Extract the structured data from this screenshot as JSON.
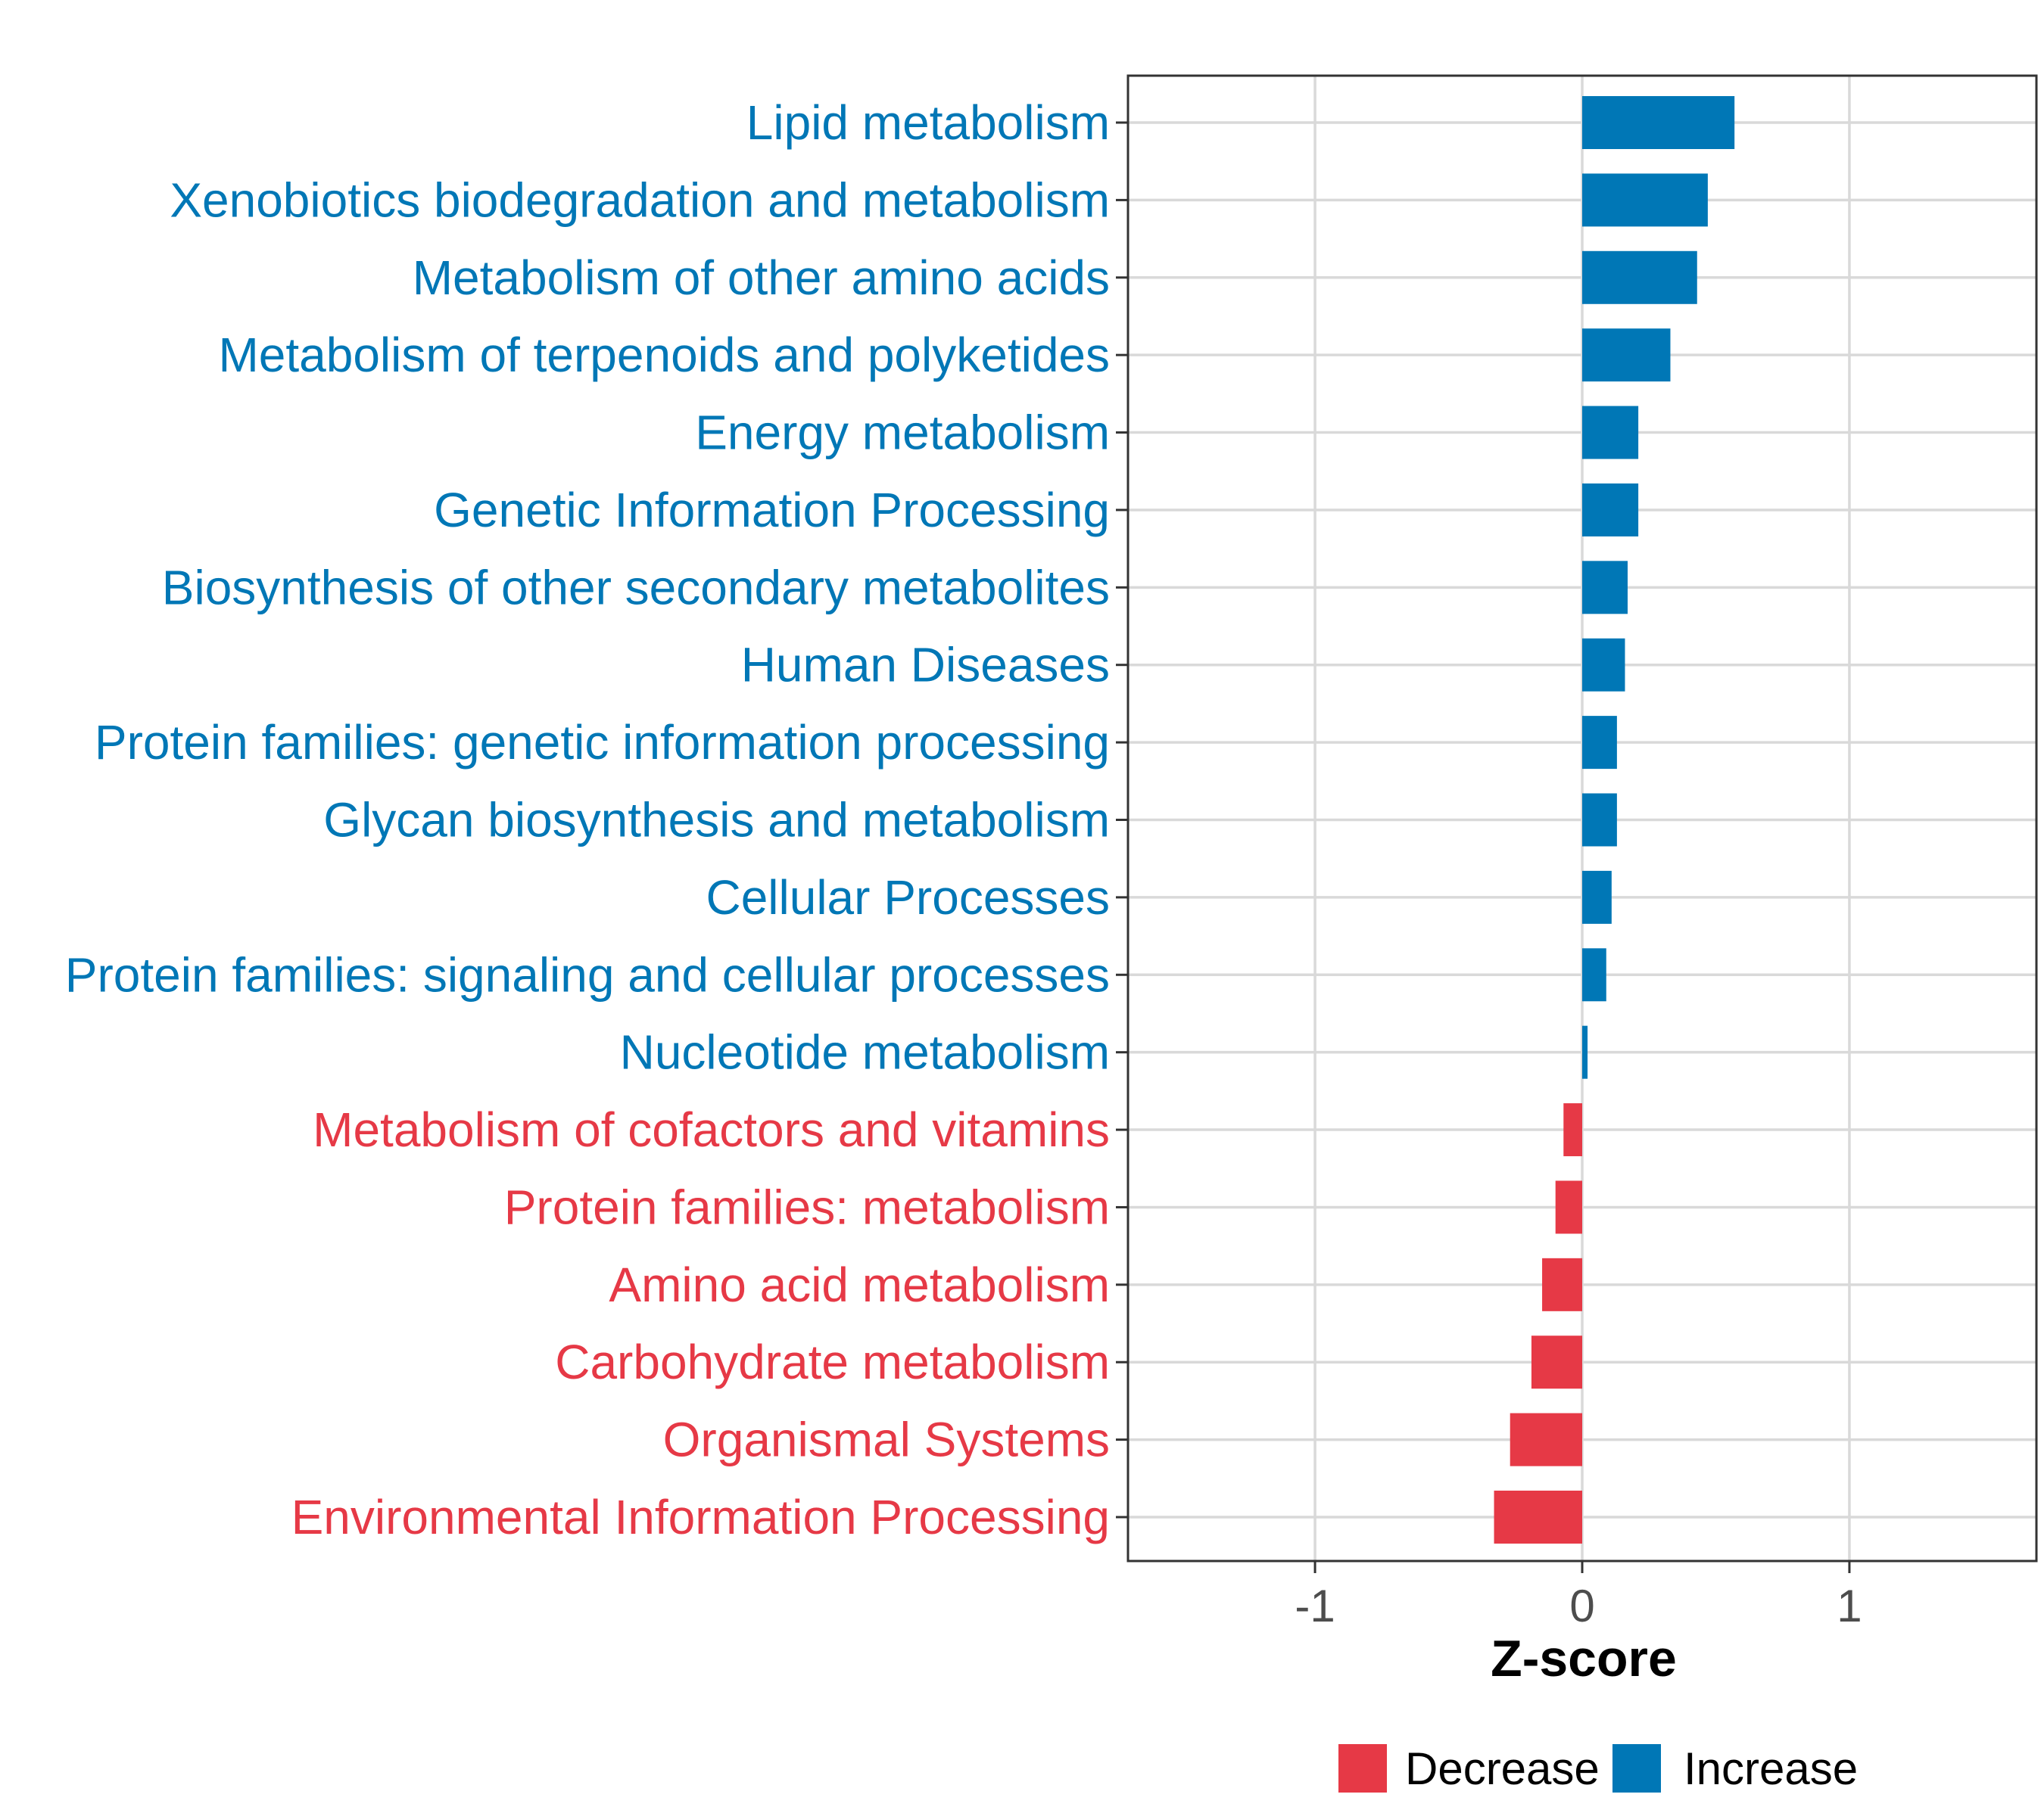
{
  "chart_data": {
    "type": "bar",
    "orientation": "horizontal",
    "xlabel": "Z-score",
    "xlim": [
      -1.7,
      1.7
    ],
    "xticks": [
      -1,
      0,
      1
    ],
    "xtick_labels": [
      "-1",
      "0",
      "1"
    ],
    "grid": true,
    "legend_position": "bottom",
    "colors": {
      "Decrease": "#e63946",
      "Increase": "#0077b6"
    },
    "legend": [
      "Decrease",
      "Increase"
    ],
    "bars": [
      {
        "label": "Lipid metabolism",
        "value": 0.57,
        "group": "Increase"
      },
      {
        "label": "Xenobiotics biodegradation and metabolism",
        "value": 0.47,
        "group": "Increase"
      },
      {
        "label": "Metabolism of other amino acids",
        "value": 0.43,
        "group": "Increase"
      },
      {
        "label": "Metabolism of terpenoids and polyketides",
        "value": 0.33,
        "group": "Increase"
      },
      {
        "label": "Energy metabolism",
        "value": 0.21,
        "group": "Increase"
      },
      {
        "label": "Genetic Information Processing",
        "value": 0.21,
        "group": "Increase"
      },
      {
        "label": "Biosynthesis of other secondary metabolites",
        "value": 0.17,
        "group": "Increase"
      },
      {
        "label": "Human Diseases",
        "value": 0.16,
        "group": "Increase"
      },
      {
        "label": "Protein families: genetic information processing",
        "value": 0.13,
        "group": "Increase"
      },
      {
        "label": "Glycan biosynthesis and metabolism",
        "value": 0.13,
        "group": "Increase"
      },
      {
        "label": "Cellular Processes",
        "value": 0.11,
        "group": "Increase"
      },
      {
        "label": "Protein families: signaling and cellular processes",
        "value": 0.09,
        "group": "Increase"
      },
      {
        "label": "Nucleotide metabolism",
        "value": 0.02,
        "group": "Increase"
      },
      {
        "label": "Metabolism of cofactors and vitamins",
        "value": -0.07,
        "group": "Decrease"
      },
      {
        "label": "Protein families: metabolism",
        "value": -0.1,
        "group": "Decrease"
      },
      {
        "label": "Amino acid metabolism",
        "value": -0.15,
        "group": "Decrease"
      },
      {
        "label": "Carbohydrate metabolism",
        "value": -0.19,
        "group": "Decrease"
      },
      {
        "label": "Organismal Systems",
        "value": -0.27,
        "group": "Decrease"
      },
      {
        "label": "Environmental Information Processing",
        "value": -0.33,
        "group": "Decrease"
      }
    ]
  }
}
